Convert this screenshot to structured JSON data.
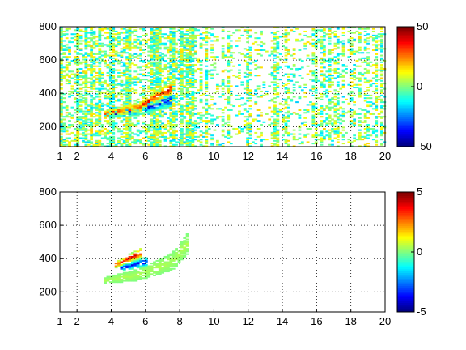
{
  "chart_data": [
    {
      "type": "heatmap",
      "title": "",
      "xlabel": "",
      "ylabel": "",
      "xlim": [
        1,
        20
      ],
      "ylim": [
        80,
        800
      ],
      "xticks": [
        "1",
        "2",
        "4",
        "6",
        "8",
        "10",
        "12",
        "14",
        "16",
        "18",
        "20"
      ],
      "yticks": [
        "200",
        "400",
        "600",
        "800"
      ],
      "grid": true,
      "colorbar": {
        "colormap": "jet",
        "range": [
          -50,
          50
        ],
        "ticks": [
          "50",
          "0",
          "-50"
        ]
      },
      "features": [
        {
          "x": [
            3.5,
            5.5,
            7.5
          ],
          "y": [
            270,
            310,
            430
          ],
          "value": 40,
          "sign": "positive",
          "description_band": "upper"
        },
        {
          "x": [
            3.8,
            5.5,
            7.5
          ],
          "y": [
            265,
            295,
            360
          ],
          "value": -40,
          "sign": "negative",
          "description_band": "lower"
        }
      ]
    },
    {
      "type": "heatmap",
      "title": "",
      "xlabel": "",
      "ylabel": "",
      "xlim": [
        1,
        20
      ],
      "ylim": [
        80,
        800
      ],
      "xticks": [
        "1",
        "2",
        "4",
        "6",
        "8",
        "10",
        "12",
        "14",
        "16",
        "18",
        "20"
      ],
      "yticks": [
        "200",
        "400",
        "600",
        "800"
      ],
      "grid": true,
      "colorbar": {
        "colormap": "jet",
        "range": [
          -5,
          5
        ],
        "ticks": [
          "5",
          "0",
          "-5"
        ]
      },
      "features": [
        {
          "x": [
            3.5,
            5.5,
            7.5,
            8.5
          ],
          "y": [
            265,
            300,
            380,
            500
          ],
          "value": 0.5,
          "sign": "near-zero"
        },
        {
          "x": [
            4.2,
            5.8
          ],
          "y": [
            360,
            440
          ],
          "value": 4,
          "sign": "positive"
        },
        {
          "x": [
            4.5,
            6.0
          ],
          "y": [
            340,
            380
          ],
          "value": -4,
          "sign": "negative"
        }
      ]
    }
  ]
}
